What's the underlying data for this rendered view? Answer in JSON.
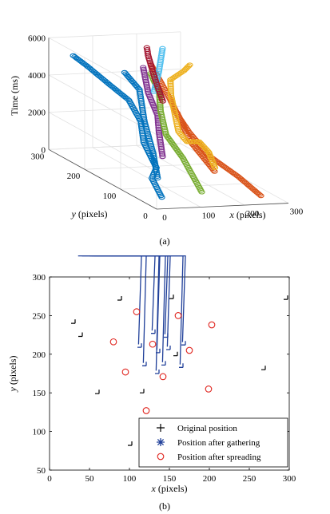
{
  "chart_data": [
    {
      "type": "scatter3d",
      "caption": "(a)",
      "title": "",
      "xlabel": "x (pixels)",
      "xlabel_italic": "x",
      "xlabel_rest": " (pixels)",
      "ylabel": "y (pixels)",
      "ylabel_italic": "y",
      "ylabel_rest": " (pixels)",
      "zlabel": "Time (ms)",
      "xlim": [
        0,
        300
      ],
      "ylim": [
        0,
        300
      ],
      "zlim": [
        0,
        6000
      ],
      "x_ticks": [
        "0",
        "100",
        "200",
        "300"
      ],
      "y_ticks": [
        "0",
        "100",
        "200",
        "300"
      ],
      "z_ticks": [
        "0",
        "2000",
        "4000",
        "6000"
      ],
      "grid": true,
      "series_colors": [
        "#0072BD",
        "#D95319",
        "#EDB120",
        "#7E2F8E",
        "#77AC30",
        "#4DBEEE",
        "#A2142F"
      ]
    },
    {
      "type": "scatter",
      "caption": "(b)",
      "title": "",
      "xlabel": "x (pixels)",
      "xlabel_italic": "x",
      "xlabel_rest": " (pixels)",
      "ylabel": "y (pixels)",
      "ylabel_italic": "y",
      "ylabel_rest": " (pixels)",
      "xlim": [
        0,
        300
      ],
      "ylim": [
        50,
        300
      ],
      "x_ticks": [
        "0",
        "50",
        "100",
        "150",
        "200",
        "250",
        "300"
      ],
      "y_ticks": [
        "50",
        "100",
        "150",
        "200",
        "250",
        "300"
      ],
      "legend_position": "bottom-right",
      "series": [
        {
          "name": "Original position",
          "marker": "plus",
          "color": "#000000",
          "points": [
            [
              32,
              240
            ],
            [
              41,
              223
            ],
            [
              62,
              149
            ],
            [
              90,
              270
            ],
            [
              103,
              82
            ],
            [
              118,
              150
            ],
            [
              155,
              272
            ],
            [
              160,
              198
            ],
            [
              270,
              180
            ],
            [
              298,
              271
            ]
          ]
        },
        {
          "name": "Position after gathering",
          "marker": "asterisk",
          "color": "#1F3F99",
          "points": [
            [
              115,
              209
            ],
            [
              121,
              185
            ],
            [
              132,
              227
            ],
            [
              138,
              202
            ],
            [
              148,
              222
            ],
            [
              151,
              206
            ],
            [
              145,
              186
            ],
            [
              137,
              175
            ],
            [
              170,
              212
            ],
            [
              167,
              183
            ]
          ]
        },
        {
          "name": "Position after spreading",
          "marker": "circle",
          "color": "#E0251F",
          "points": [
            [
              80,
              216
            ],
            [
              95,
              177
            ],
            [
              109,
              255
            ],
            [
              129,
              213
            ],
            [
              121,
              127
            ],
            [
              142,
              171
            ],
            [
              161,
              250
            ],
            [
              175,
              205
            ],
            [
              199,
              155
            ],
            [
              203,
              238
            ]
          ]
        }
      ]
    }
  ]
}
